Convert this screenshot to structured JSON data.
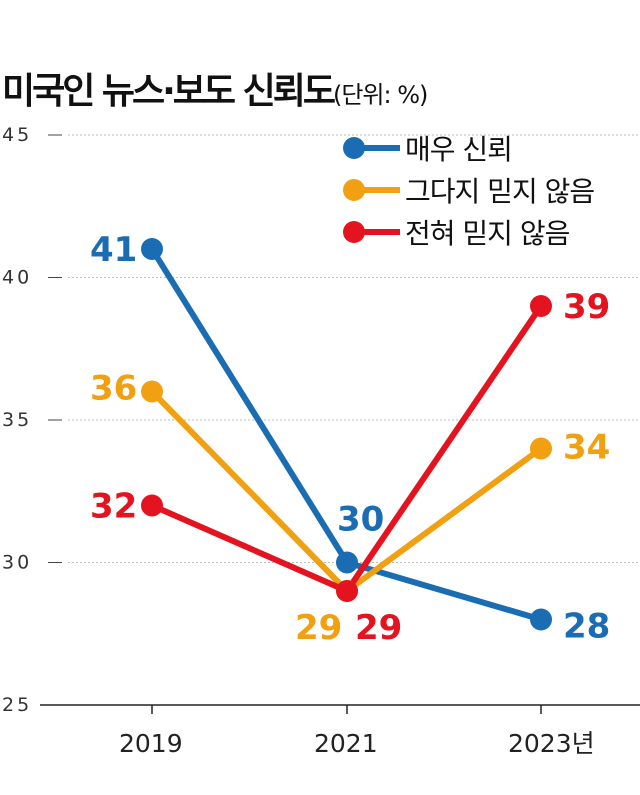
{
  "chart_data": {
    "type": "line",
    "title": "미국인 뉴스·보도 신뢰도",
    "unit": "(단위: %)",
    "categories": [
      "2019",
      "2021",
      "2023년"
    ],
    "ylim": [
      25,
      45
    ],
    "yticks": [
      25,
      30,
      35,
      40,
      45
    ],
    "grid": true,
    "legend_position": "top-right",
    "series": [
      {
        "name": "매우 신뢰",
        "color": "#1b6db3",
        "values": [
          41,
          30,
          28
        ]
      },
      {
        "name": "그다지 믿지 않음",
        "color": "#f0a010",
        "values": [
          36,
          29,
          34
        ]
      },
      {
        "name": "전혀 믿지 않음",
        "color": "#e3131f",
        "values": [
          32,
          29,
          39
        ]
      }
    ]
  }
}
